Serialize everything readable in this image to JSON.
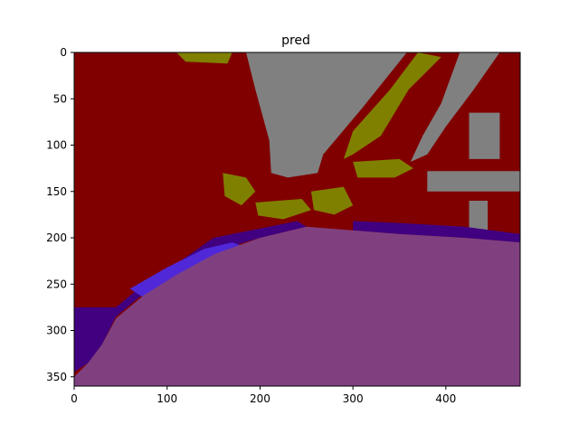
{
  "chart_data": {
    "type": "heatmap",
    "title": "pred",
    "xlabel": "",
    "ylabel": "",
    "image_width": 480,
    "image_height": 360,
    "xlim": [
      0,
      480
    ],
    "ylim": [
      360,
      0
    ],
    "x_ticks": [
      0,
      100,
      200,
      300,
      400
    ],
    "y_ticks": [
      0,
      50,
      100,
      150,
      200,
      250,
      300,
      350
    ],
    "grid": false,
    "legend": "none",
    "palette": {
      "building": "#800000",
      "sky": "#808080",
      "vegetation": "#808000",
      "road": "#804080",
      "sidewalk_dark": "#400080",
      "sidewalk_light": "#5028d8"
    },
    "regions": [
      {
        "name": "building",
        "points": [
          [
            0,
            0
          ],
          [
            480,
            0
          ],
          [
            480,
            200
          ],
          [
            430,
            195
          ],
          [
            350,
            192
          ],
          [
            290,
            186
          ],
          [
            250,
            188
          ],
          [
            200,
            196
          ],
          [
            150,
            210
          ],
          [
            110,
            232
          ],
          [
            70,
            262
          ],
          [
            45,
            285
          ],
          [
            20,
            285
          ],
          [
            0,
            285
          ]
        ]
      },
      {
        "name": "sky",
        "points": [
          [
            185,
            0
          ],
          [
            358,
            0
          ],
          [
            310,
            60
          ],
          [
            268,
            110
          ],
          [
            262,
            130
          ],
          [
            230,
            135
          ],
          [
            212,
            130
          ],
          [
            210,
            95
          ],
          [
            195,
            40
          ]
        ]
      },
      {
        "name": "sky",
        "points": [
          [
            415,
            0
          ],
          [
            458,
            0
          ],
          [
            430,
            40
          ],
          [
            400,
            80
          ],
          [
            380,
            110
          ],
          [
            362,
            118
          ],
          [
            375,
            90
          ],
          [
            395,
            55
          ]
        ]
      },
      {
        "name": "sky",
        "points": [
          [
            425,
            65
          ],
          [
            458,
            65
          ],
          [
            458,
            115
          ],
          [
            425,
            115
          ]
        ]
      },
      {
        "name": "sky",
        "points": [
          [
            380,
            128
          ],
          [
            480,
            128
          ],
          [
            480,
            150
          ],
          [
            380,
            150
          ]
        ]
      },
      {
        "name": "sky",
        "points": [
          [
            425,
            160
          ],
          [
            445,
            160
          ],
          [
            445,
            195
          ],
          [
            425,
            195
          ]
        ]
      },
      {
        "name": "vegetation",
        "points": [
          [
            370,
            0
          ],
          [
            395,
            5
          ],
          [
            360,
            40
          ],
          [
            330,
            90
          ],
          [
            300,
            110
          ],
          [
            290,
            115
          ],
          [
            300,
            85
          ],
          [
            340,
            40
          ]
        ]
      },
      {
        "name": "vegetation",
        "points": [
          [
            255,
            150
          ],
          [
            290,
            145
          ],
          [
            300,
            165
          ],
          [
            280,
            175
          ],
          [
            258,
            170
          ]
        ]
      },
      {
        "name": "vegetation",
        "points": [
          [
            160,
            130
          ],
          [
            185,
            135
          ],
          [
            195,
            150
          ],
          [
            180,
            165
          ],
          [
            162,
            155
          ]
        ]
      },
      {
        "name": "vegetation",
        "points": [
          [
            300,
            118
          ],
          [
            350,
            115
          ],
          [
            365,
            125
          ],
          [
            345,
            135
          ],
          [
            305,
            135
          ]
        ]
      },
      {
        "name": "vegetation",
        "points": [
          [
            195,
            162
          ],
          [
            245,
            158
          ],
          [
            255,
            170
          ],
          [
            225,
            180
          ],
          [
            198,
            176
          ]
        ]
      },
      {
        "name": "vegetation",
        "points": [
          [
            110,
            0
          ],
          [
            170,
            0
          ],
          [
            165,
            12
          ],
          [
            120,
            10
          ]
        ]
      },
      {
        "name": "sidewalk_dark",
        "points": [
          [
            0,
            275
          ],
          [
            45,
            275
          ],
          [
            75,
            250
          ],
          [
            110,
            228
          ],
          [
            150,
            200
          ],
          [
            200,
            190
          ],
          [
            240,
            182
          ],
          [
            250,
            188
          ],
          [
            200,
            200
          ],
          [
            150,
            215
          ],
          [
            110,
            236
          ],
          [
            75,
            260
          ],
          [
            45,
            285
          ],
          [
            30,
            315
          ],
          [
            15,
            335
          ],
          [
            0,
            345
          ]
        ]
      },
      {
        "name": "sidewalk_dark",
        "points": [
          [
            300,
            182
          ],
          [
            350,
            184
          ],
          [
            420,
            188
          ],
          [
            480,
            196
          ],
          [
            480,
            205
          ],
          [
            420,
            200
          ],
          [
            350,
            196
          ],
          [
            300,
            192
          ]
        ]
      },
      {
        "name": "sidewalk_light",
        "points": [
          [
            60,
            255
          ],
          [
            100,
            232
          ],
          [
            140,
            212
          ],
          [
            170,
            205
          ],
          [
            185,
            210
          ],
          [
            150,
            226
          ],
          [
            110,
            248
          ],
          [
            80,
            268
          ]
        ]
      },
      {
        "name": "road",
        "points": [
          [
            480,
            205
          ],
          [
            420,
            200
          ],
          [
            350,
            196
          ],
          [
            300,
            192
          ],
          [
            250,
            188
          ],
          [
            200,
            200
          ],
          [
            150,
            218
          ],
          [
            110,
            240
          ],
          [
            75,
            262
          ],
          [
            45,
            287
          ],
          [
            30,
            315
          ],
          [
            15,
            335
          ],
          [
            0,
            350
          ],
          [
            0,
            360
          ],
          [
            480,
            360
          ]
        ]
      }
    ]
  }
}
